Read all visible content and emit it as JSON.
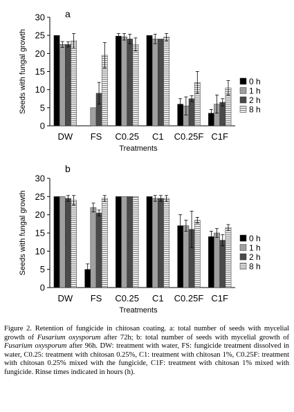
{
  "chart_data": [
    {
      "type": "bar",
      "panel_label": "a",
      "categories": [
        "DW",
        "FS",
        "C0.25",
        "C1",
        "C0.25F",
        "C1F"
      ],
      "xlabel": "Treatments",
      "ylabel": "Seeds with fungal growth",
      "ylim": [
        0,
        30
      ],
      "yticks": [
        0,
        5,
        10,
        15,
        20,
        25,
        30
      ],
      "legend_position": "right",
      "series": [
        {
          "name": "0 h",
          "values": [
            25,
            0,
            24.8,
            25,
            6,
            3.5
          ],
          "errors": [
            0,
            0,
            0.7,
            0,
            1.5,
            1
          ]
        },
        {
          "name": "1 h",
          "values": [
            22.5,
            5,
            24.6,
            24,
            5.5,
            6
          ],
          "errors": [
            0.8,
            0,
            0.9,
            1.3,
            2.5,
            2.5
          ]
        },
        {
          "name": "2 h",
          "values": [
            22.5,
            9,
            24,
            24,
            7.5,
            6.5
          ],
          "errors": [
            0.7,
            3,
            1.3,
            0,
            0.8,
            1
          ]
        },
        {
          "name": "8 h",
          "values": [
            23.5,
            19.5,
            22.5,
            24.5,
            12,
            10.5
          ],
          "errors": [
            2,
            3.5,
            1.8,
            1,
            3,
            2
          ]
        }
      ]
    },
    {
      "type": "bar",
      "panel_label": "b",
      "categories": [
        "DW",
        "FS",
        "C0.25",
        "C1",
        "C0.25F",
        "C1F"
      ],
      "xlabel": "Treatments",
      "ylabel": "Seeds with fungal growth",
      "ylim": [
        0,
        30
      ],
      "yticks": [
        0,
        5,
        10,
        15,
        20,
        25,
        30
      ],
      "legend_position": "right",
      "series": [
        {
          "name": "0 h",
          "values": [
            25,
            5,
            25,
            25,
            17,
            14
          ],
          "errors": [
            0,
            1.5,
            0,
            0,
            3,
            1.5
          ]
        },
        {
          "name": "1 h",
          "values": [
            25,
            22,
            25,
            24.5,
            17,
            15
          ],
          "errors": [
            0,
            1.2,
            0,
            0.8,
            1.5,
            1.2
          ]
        },
        {
          "name": "2 h",
          "values": [
            24.5,
            20.5,
            25,
            24.5,
            16,
            13
          ],
          "errors": [
            0.8,
            0.8,
            0,
            0.8,
            5,
            1.5
          ]
        },
        {
          "name": "8 h",
          "values": [
            24,
            24.5,
            25,
            24.5,
            18.5,
            16.5
          ],
          "errors": [
            1.3,
            0.8,
            0,
            0.8,
            0.8,
            0.8
          ]
        }
      ]
    }
  ],
  "series_colors": [
    "#000000",
    "#a0a0a0",
    "#4a4a4a",
    "#e6e6e6"
  ],
  "series_patterns": [
    "solid",
    "solid",
    "solid",
    "horizontal-stripes"
  ],
  "caption": {
    "line1_a": "Figure 2. Retention of fungicide in chitosan coating. a: total number of seeds with mycelial growth of ",
    "species": "Fusarium oxysporum",
    "line1_b": " after 72h; b: total number of seeds with mycelial growth of ",
    "line1_c": " after 96h. DW: treatment with water, FS: fungicide treatment dissolved in water, C0.25: treatment with chitosan 0.25%, C1: treatment with chitosan 1%, C0.25F: treatment with chitosan 0.25% mixed with the fungicide, C1F: treatment with chitosan 1% mixed with fungicide. Rinse times indicated in hours (h)."
  }
}
